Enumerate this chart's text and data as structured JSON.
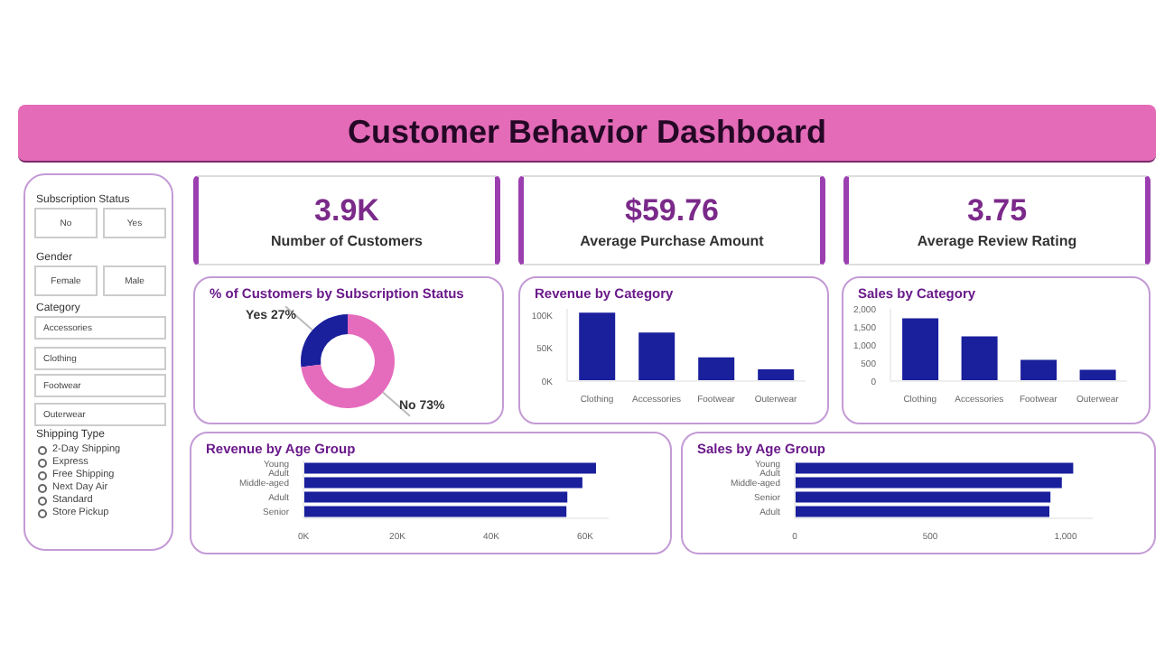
{
  "chart_data": [
    {
      "type": "other",
      "title": "Customer Behavior Dashboard"
    },
    {
      "type": "other",
      "annotations": [
        "Subscription Status",
        "No",
        "Yes",
        "Gender",
        "Female",
        "Male",
        "Category",
        "Accessories",
        "Clothing",
        "Footwear",
        "Outerwear",
        "Shipping Type",
        "2-Day Shipping",
        "Express",
        "Free Shipping",
        "Next Day Air",
        "Standard",
        "Store Pickup"
      ]
    },
    {
      "type": "other",
      "title": "Number of Customers",
      "annotations": [
        "3.9K"
      ]
    },
    {
      "type": "other",
      "title": "Average Purchase Amount",
      "annotations": [
        "$59.76"
      ]
    },
    {
      "type": "other",
      "title": "Average Review Rating",
      "annotations": [
        "3.75"
      ]
    },
    {
      "type": "donut",
      "title": "% of Customers by Subscription Status",
      "categories": [
        "Yes",
        "No"
      ],
      "values": [
        27,
        73
      ],
      "value_labels": [
        "27%",
        "73%"
      ],
      "colors": [
        "#1a1f9c",
        "#e56bbd"
      ]
    },
    {
      "type": "bar",
      "title": "Revenue by Category",
      "categories": [
        "Clothing",
        "Accessories",
        "Footwear",
        "Outerwear"
      ],
      "values": [
        104000,
        74000,
        36000,
        18000
      ],
      "color": "#1a1f9c",
      "ylim": [
        0,
        110000
      ],
      "yticks": [
        {
          "value": 0,
          "label": "0K"
        },
        {
          "value": 50000,
          "label": "50K"
        },
        {
          "value": 100000,
          "label": "100K"
        }
      ]
    },
    {
      "type": "bar",
      "title": "Sales by Category",
      "categories": [
        "Clothing",
        "Accessories",
        "Footwear",
        "Outerwear"
      ],
      "values": [
        1740,
        1240,
        590,
        310
      ],
      "color": "#1a1f9c",
      "ylim": [
        0,
        2000
      ],
      "yticks": [
        0,
        500,
        {
          "value": 1000,
          "label": "1,000"
        },
        {
          "value": 1500,
          "label": "1,500"
        },
        {
          "value": 2000,
          "label": "2,000"
        }
      ]
    },
    {
      "type": "bar",
      "orientation": "horizontal",
      "title": "Revenue by Age Group",
      "categories": [
        "Young Adult",
        "Middle-aged",
        "Adult",
        "Senior"
      ],
      "values": [
        62300,
        59400,
        56200,
        56000
      ],
      "color": "#1a1f9c",
      "xlim": [
        0,
        65000
      ],
      "xticks": [
        {
          "value": 0,
          "label": "0K"
        },
        {
          "value": 20000,
          "label": "20K"
        },
        {
          "value": 40000,
          "label": "40K"
        },
        {
          "value": 60000,
          "label": "60K"
        }
      ]
    },
    {
      "type": "bar",
      "orientation": "horizontal",
      "title": "Sales by Age Group",
      "categories": [
        "Young Adult",
        "Middle-aged",
        "Senior",
        "Adult"
      ],
      "values": [
        1028,
        986,
        944,
        940
      ],
      "color": "#1a1f9c",
      "xlim": [
        0,
        1100
      ],
      "xticks": [
        0,
        500,
        {
          "value": 1000,
          "label": "1,000"
        }
      ]
    }
  ]
}
